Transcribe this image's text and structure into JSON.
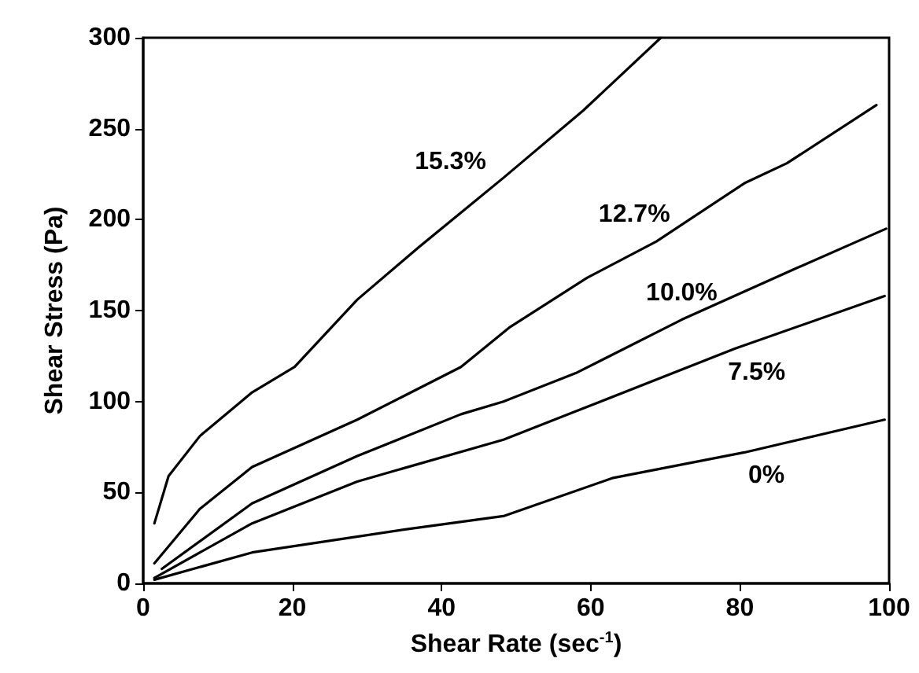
{
  "chart_data": {
    "type": "line",
    "xlabel": "Shear Rate (sec$^{-1}$)",
    "ylabel": "Shear Stress (Pa)",
    "xlim": [
      0,
      100
    ],
    "xticks": [
      0,
      20,
      40,
      60,
      80,
      100
    ],
    "ylim": [
      0,
      300
    ],
    "yticks": [
      0,
      50,
      100,
      150,
      200,
      250,
      300
    ],
    "grid": false,
    "legend": false,
    "marker": "none",
    "line_style": "solid",
    "series": [
      {
        "name": "15.3%",
        "color": "#000000",
        "x": [
          1.5,
          3.4,
          7.6,
          14.6,
          20.3,
          28.7,
          37,
          48.3,
          59,
          69.4
        ],
        "values": [
          33,
          59,
          81,
          105,
          119,
          156,
          185,
          223,
          260,
          300
        ]
      },
      {
        "name": "12.7%",
        "color": "#000000",
        "x": [
          1.5,
          7.6,
          14.6,
          28.7,
          42.6,
          49.2,
          59.5,
          68.8,
          80.6,
          86.3,
          98.3
        ],
        "values": [
          11,
          41,
          64,
          90,
          119,
          141,
          168,
          188,
          220,
          231,
          263
        ]
      },
      {
        "name": "10.0%",
        "color": "#000000",
        "x": [
          2.5,
          14.6,
          28.7,
          42.6,
          48.3,
          58.2,
          72.2,
          86.3,
          99.6
        ],
        "values": [
          8,
          44,
          70,
          93,
          100,
          116,
          145,
          171,
          195
        ]
      },
      {
        "name": "7.5%",
        "color": "#000000",
        "x": [
          1.5,
          14.6,
          28.7,
          48.3,
          59.5,
          79.3,
          99.4
        ],
        "values": [
          3,
          33,
          56,
          79,
          97,
          129,
          158
        ]
      },
      {
        "name": "0%",
        "color": "#000000",
        "x": [
          1.5,
          14.6,
          35.7,
          48.3,
          63,
          80.6,
          99.4
        ],
        "values": [
          2,
          17,
          30,
          37,
          58,
          72,
          90
        ]
      }
    ]
  }
}
